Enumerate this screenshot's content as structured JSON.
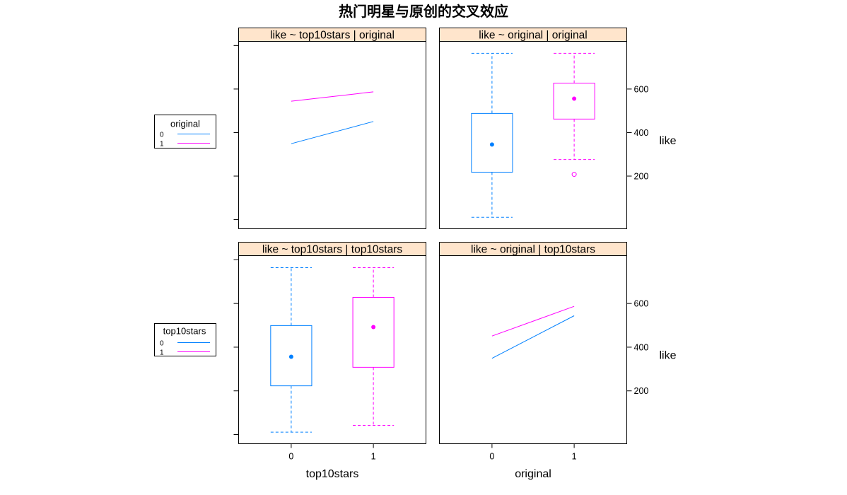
{
  "title": "热门明星与原创的交叉效应",
  "colors": {
    "strip": "#FFE5CC"
  },
  "legends": [
    {
      "title": "original",
      "placement": "left",
      "entries": [
        {
          "label": "0",
          "color": "#0080FF"
        },
        {
          "label": "1",
          "color": "#FF00FF"
        }
      ]
    },
    {
      "title": "top10stars",
      "placement": "left",
      "entries": [
        {
          "label": "0",
          "color": "#0080FF"
        },
        {
          "label": "1",
          "color": "#FF00FF"
        }
      ]
    }
  ],
  "chart_data": [
    {
      "type": "line",
      "title": "like ~ top10stars | original",
      "categories": [
        "0",
        "1"
      ],
      "series": [
        {
          "name": "0",
          "color": "#0080FF",
          "values": [
            349,
            451
          ]
        },
        {
          "name": "1",
          "color": "#FF00FF",
          "values": [
            544,
            587
          ]
        }
      ],
      "ylim": [
        -42,
        819
      ],
      "y_ticks": [
        0,
        200,
        400,
        600,
        800
      ],
      "grid": false,
      "xlabel": "",
      "ylabel": ""
    },
    {
      "type": "boxplot",
      "title": "like ~ original | original",
      "categories": [
        "0",
        "1"
      ],
      "boxes": [
        {
          "category": "0",
          "color": "#0080FF",
          "min": 11,
          "q1": 218,
          "median": 345,
          "q3": 488,
          "max": 764,
          "outliers": []
        },
        {
          "category": "1",
          "color": "#FF00FF",
          "min": 276,
          "q1": 462,
          "median": 556,
          "q3": 627,
          "max": 764,
          "outliers": [
            208
          ]
        }
      ],
      "ylim": [
        -42,
        819
      ],
      "y_ticks": [
        200,
        400,
        600
      ],
      "grid": false,
      "xlabel": "",
      "ylabel": "like"
    },
    {
      "type": "boxplot",
      "title": "like ~ top10stars | top10stars",
      "categories": [
        "0",
        "1"
      ],
      "boxes": [
        {
          "category": "0",
          "color": "#0080FF",
          "min": 11,
          "q1": 223,
          "median": 356,
          "q3": 499,
          "max": 764,
          "outliers": []
        },
        {
          "category": "1",
          "color": "#FF00FF",
          "min": 42,
          "q1": 308,
          "median": 492,
          "q3": 628,
          "max": 764,
          "outliers": []
        }
      ],
      "ylim": [
        -42,
        819
      ],
      "y_ticks": [
        0,
        200,
        400,
        600,
        800
      ],
      "grid": false,
      "xlabel": "top10stars",
      "ylabel": ""
    },
    {
      "type": "line",
      "title": "like ~ original | top10stars",
      "categories": [
        "0",
        "1"
      ],
      "series": [
        {
          "name": "0",
          "color": "#0080FF",
          "values": [
            349,
            544
          ]
        },
        {
          "name": "1",
          "color": "#FF00FF",
          "values": [
            451,
            587
          ]
        }
      ],
      "ylim": [
        -42,
        819
      ],
      "y_ticks": [
        200,
        400,
        600
      ],
      "grid": false,
      "xlabel": "original",
      "ylabel": "like"
    }
  ]
}
